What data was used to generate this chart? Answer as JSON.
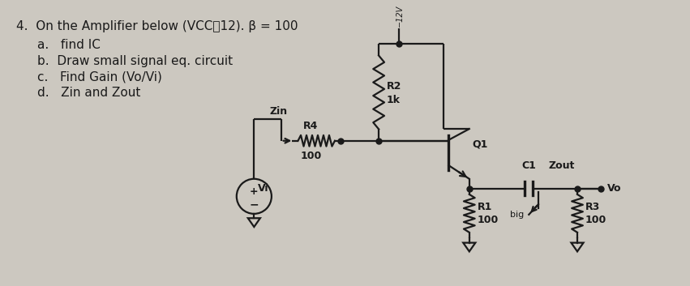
{
  "bg_color": "#ccc8c0",
  "line_color": "#1a1a1a",
  "text_color": "#1a1a1a",
  "title": "4.  On the Amplifier below (VCC͐12). β = 100",
  "sub_items": [
    "a.   find IC",
    "b.  Draw small signal eq. circuit",
    "c.   Find Gain (Vo/Vi)",
    "d.   Zin and Zout"
  ]
}
